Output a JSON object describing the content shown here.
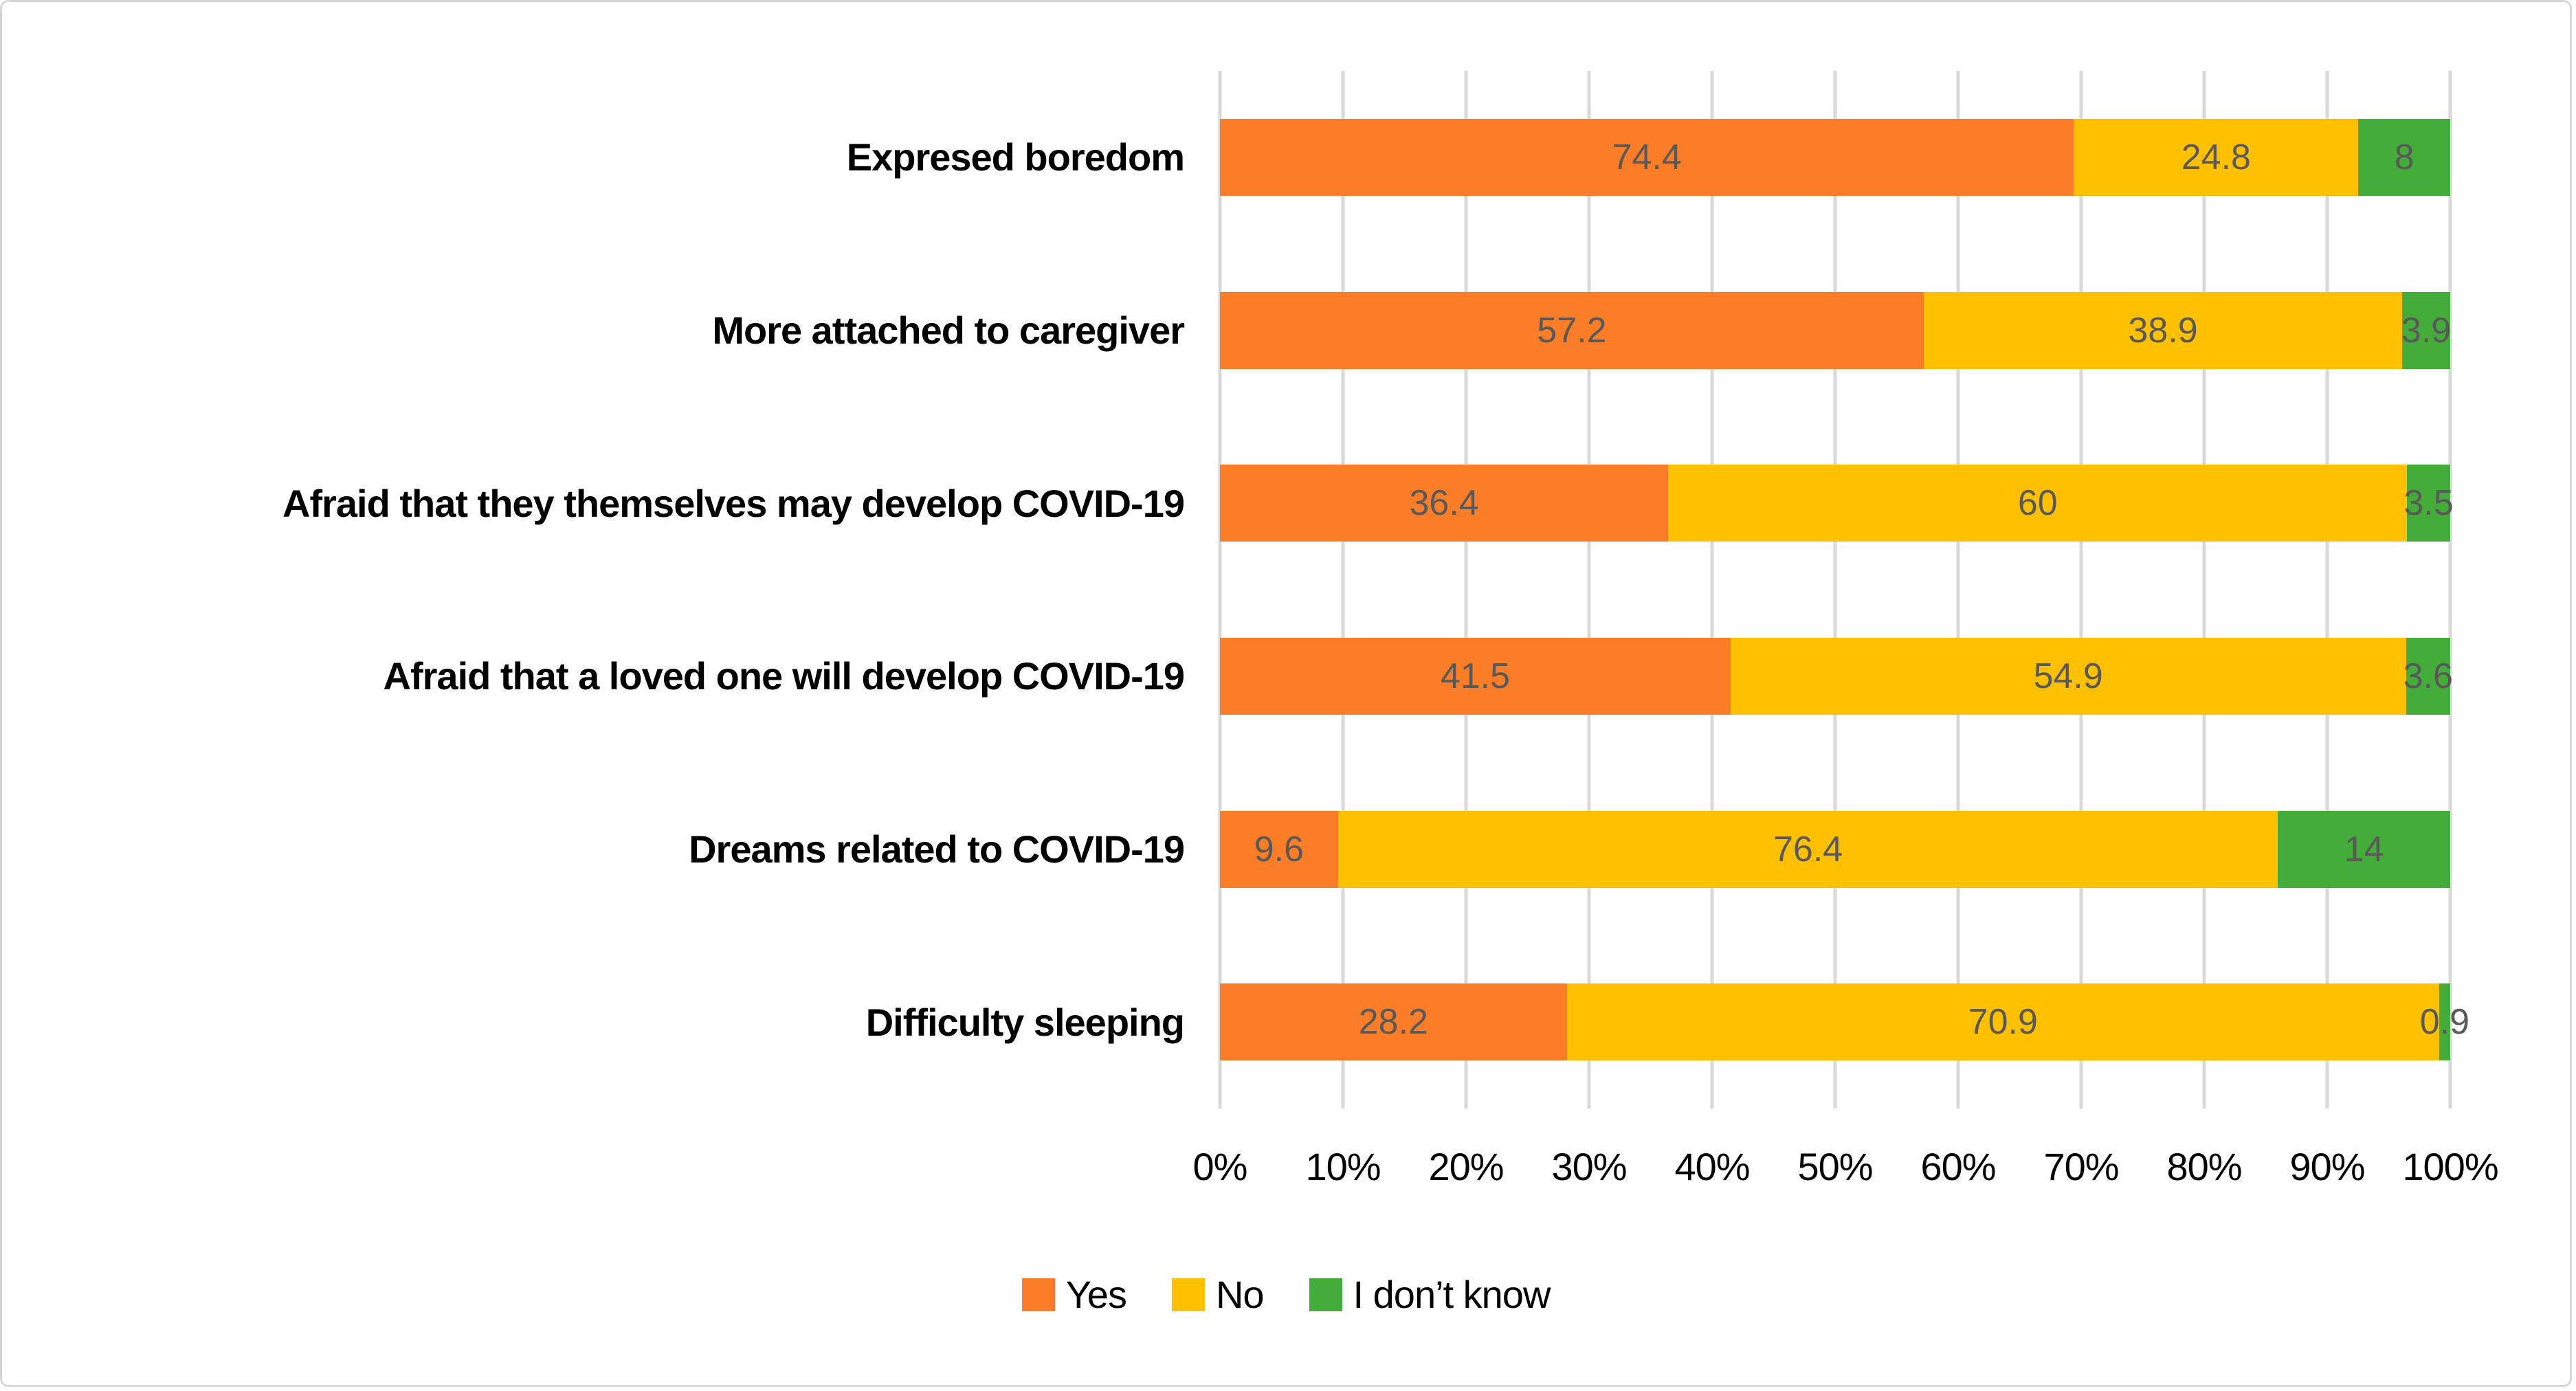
{
  "figure": {
    "background": "#ffffff",
    "border_color": "#d6d6d6"
  },
  "chart_data": {
    "type": "bar",
    "orientation": "horizontal",
    "stacked": true,
    "normalized_to_100_percent": true,
    "title": "",
    "xlabel": "",
    "ylabel": "",
    "xlim": [
      0,
      100
    ],
    "grid": true,
    "gridline_color": "#d9d9d9",
    "data_label_color": "#595959",
    "categories": [
      "Expresed boredom",
      "More attached to caregiver",
      "Afraid that they themselves may develop COVID-19",
      "Afraid that a loved one will develop COVID-19",
      "Dreams related to COVID-19",
      "Difficulty sleeping"
    ],
    "series": [
      {
        "name": "Yes",
        "color": "#fb7d28",
        "values": [
          74.4,
          57.2,
          36.4,
          41.5,
          9.6,
          28.2
        ]
      },
      {
        "name": "No",
        "color": "#ffc000",
        "values": [
          24.8,
          38.9,
          60,
          54.9,
          76.4,
          70.9
        ]
      },
      {
        "name": "I don’t know",
        "color": "#44ad3a",
        "values": [
          8,
          3.9,
          3.5,
          3.6,
          14,
          0.9
        ]
      }
    ],
    "x_ticks": [
      "0%",
      "10%",
      "20%",
      "30%",
      "40%",
      "50%",
      "60%",
      "70%",
      "80%",
      "90%",
      "100%"
    ],
    "legend": {
      "position": "bottom",
      "entries": [
        "Yes",
        "No",
        "I don’t know"
      ]
    }
  }
}
